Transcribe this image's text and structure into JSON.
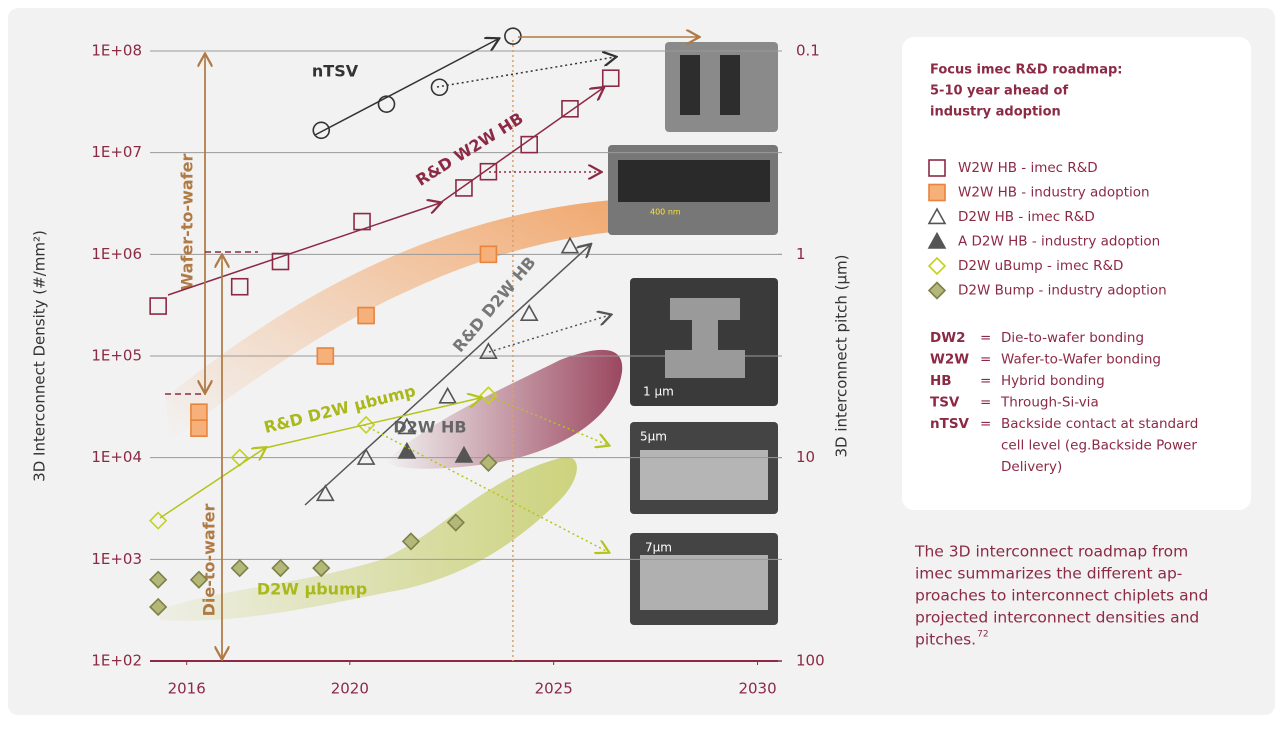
{
  "chart_data": {
    "type": "scatter",
    "y_label": "3D Interconnect Density (#/mm²)",
    "y2_label": "3D interconnect pitch (µm)",
    "xlim": [
      2015.1,
      2030.6
    ],
    "xticks": [
      2016,
      2020,
      2025,
      2030
    ],
    "ylim": [
      100,
      100000000
    ],
    "ylog": true,
    "yticks": [
      {
        "value": 100,
        "label": "1E+02"
      },
      {
        "value": 1000,
        "label": "1E+03"
      },
      {
        "value": 10000,
        "label": "1E+04"
      },
      {
        "value": 100000,
        "label": "1E+05"
      },
      {
        "value": 1000000,
        "label": "1E+06"
      },
      {
        "value": 10000000,
        "label": "1E+07"
      },
      {
        "value": 100000000,
        "label": "1E+08"
      }
    ],
    "y2lim": [
      100,
      0.1
    ],
    "y2log": true,
    "y2ticks": [
      0.1,
      1,
      10,
      100
    ],
    "grid": true,
    "reference_x": 2024,
    "series": [
      {
        "name": "W2W HB - imec R&D",
        "marker": "square",
        "filled": false,
        "color": "#8c2a46",
        "x": [
          2015.3,
          2017.3,
          2018.3,
          2020.3,
          2022.8,
          2023.4,
          2024.4,
          2025.4,
          2026.4
        ],
        "values": [
          310000,
          480000,
          850000,
          2100000,
          4500000,
          6500000,
          12000000,
          27000000,
          54000000
        ]
      },
      {
        "name": "W2W HB - industry adoption",
        "marker": "square",
        "filled": true,
        "color": "#f6b07a",
        "x": [
          2016.3,
          2016.3,
          2019.4,
          2020.4,
          2023.4
        ],
        "values": [
          28000,
          19500,
          100000,
          250000,
          1000000
        ]
      },
      {
        "name": "D2W HB - imec R&D",
        "marker": "triangle",
        "filled": false,
        "color": "#555555",
        "x": [
          2019.4,
          2020.4,
          2021.4,
          2022.4,
          2023.4,
          2024.4,
          2025.4
        ],
        "values": [
          4400,
          10000,
          20000,
          40000,
          110000,
          260000,
          1200000
        ]
      },
      {
        "name": "A D2W HB - industry adoption",
        "marker": "triangle",
        "filled": true,
        "color": "#555555",
        "x": [
          2021.4,
          2022.8
        ],
        "values": [
          11500,
          10500
        ]
      },
      {
        "name": "D2W uBump - imec R&D",
        "marker": "diamond",
        "filled": false,
        "color": "#c3d21c",
        "x": [
          2015.3,
          2017.3,
          2020.4,
          2023.4
        ],
        "values": [
          2400,
          10000,
          21000,
          41000
        ]
      },
      {
        "name": "D2W Bump - industry adoption",
        "marker": "diamond",
        "filled": true,
        "color": "#b3b878",
        "x": [
          2015.3,
          2015.3,
          2016.3,
          2017.3,
          2018.3,
          2019.3,
          2021.5,
          2022.6,
          2023.4
        ],
        "values": [
          630,
          340,
          630,
          820,
          820,
          820,
          1500,
          2300,
          8900
        ]
      },
      {
        "name": "nTSV",
        "marker": "circle",
        "filled": false,
        "color": "#333333",
        "in_legend": false,
        "x": [
          2019.3,
          2020.9,
          2022.2,
          2024.0
        ],
        "values": [
          16600000,
          30000000,
          44000000,
          140000000
        ]
      }
    ],
    "annotations": [
      {
        "text": "nTSV",
        "color": "#333333"
      },
      {
        "text": "R&D W2W HB",
        "color": "#8c2a46"
      },
      {
        "text": "R&D D2W HB",
        "color": "#777777"
      },
      {
        "text": "R&D D2W µbump",
        "color": "#a9b81a"
      },
      {
        "text": "D2W HB",
        "color": "#666666"
      },
      {
        "text": "D2W µbump",
        "color": "#a9b81a"
      },
      {
        "text": "Wafer-to-wafer",
        "color": "#b07a45"
      },
      {
        "text": "Die-to-wafer",
        "color": "#b07a45"
      }
    ],
    "micrograph_scales": [
      "400 nm",
      "1 µm",
      "5µm",
      "7µm"
    ]
  },
  "panel": {
    "title": [
      "Focus imec R&D roadmap:",
      "5-10 year ahead of",
      "industry adoption"
    ],
    "separator": "=",
    "definitions": [
      {
        "term": "DW2",
        "definition": [
          "Die-to-wafer bonding"
        ]
      },
      {
        "term": "W2W",
        "definition": [
          "Wafer-to-Wafer bonding"
        ]
      },
      {
        "term": "HB",
        "definition": [
          "Hybrid bonding"
        ]
      },
      {
        "term": "TSV",
        "definition": [
          "Through-Si-via"
        ]
      },
      {
        "term": "nTSV",
        "definition": [
          "Backside contact at standard",
          "cell level (eg.Backside Power",
          "Delivery)"
        ]
      }
    ]
  },
  "caption": {
    "lines": [
      "The 3D interconnect roadmap from",
      "imec summarizes the different ap-",
      "proaches to interconnect chiplets and",
      "projected interconnect densities and",
      "pitches."
    ],
    "ref": "72"
  }
}
